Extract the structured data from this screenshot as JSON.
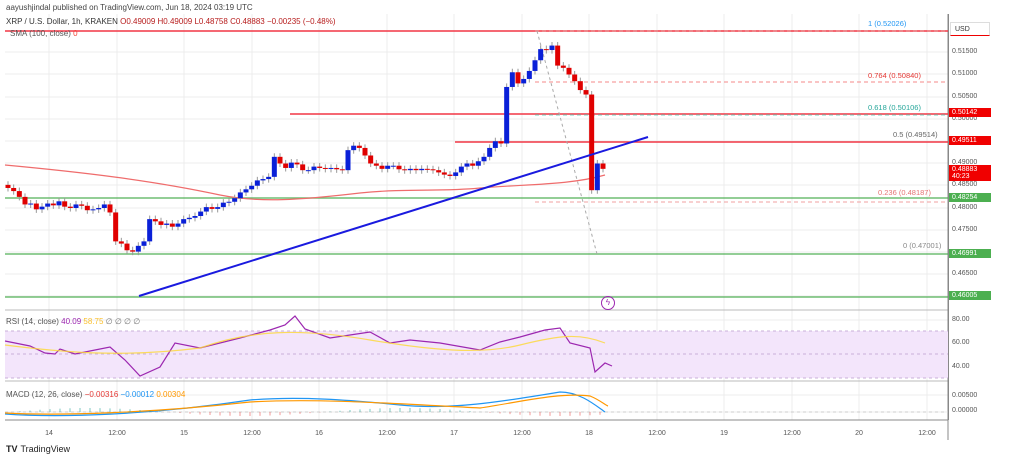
{
  "header": {
    "published": "aayushjindal published on TradingView.com, Jun 18, 2024 03:19 UTC",
    "symbol": "XRP / U.S. Dollar, 1h, KRAKEN",
    "ohlc": {
      "open": "O0.49009",
      "high": "H0.49009",
      "low": "L0.48758",
      "close": "C0.48883",
      "change": "−0.00235 (−0.48%)"
    },
    "sma": {
      "label": "SMA (100, close)",
      "value": "0"
    }
  },
  "currency": "USD",
  "price_axis": {
    "labels": [
      "0.51500",
      "0.51000",
      "0.50500",
      "0.50000",
      "0.49000",
      "0.48500",
      "0.48000",
      "0.47500",
      "0.46500"
    ],
    "tags": [
      {
        "value": "0.50142",
        "color": "#f00000"
      },
      {
        "value": "0.49511",
        "color": "#f00000"
      },
      {
        "value": "0.48883",
        "sub": "40:23",
        "color": "#f00000"
      },
      {
        "value": "0.48254",
        "color": "#4caf50"
      },
      {
        "value": "0.46991",
        "color": "#4caf50"
      },
      {
        "value": "0.46005",
        "color": "#4caf50"
      }
    ]
  },
  "fib_levels": [
    {
      "label": "1 (0.52026)",
      "color": "#2196f3"
    },
    {
      "label": "0.764 (0.50840)",
      "color": "#e53935"
    },
    {
      "label": "0.618 (0.50106)",
      "color": "#26a69a"
    },
    {
      "label": "0.5 (0.49514)",
      "color": "#666666"
    },
    {
      "label": "0.236 (0.48187)",
      "color": "#e57373"
    },
    {
      "label": "0 (0.47001)",
      "color": "#888888"
    }
  ],
  "rsi": {
    "label": "RSI (14, close)",
    "value": "40.09",
    "ma": "58.75",
    "extras": "∅ ∅ ∅ ∅",
    "axis": [
      "80.00",
      "60.00",
      "40.00"
    ]
  },
  "macd": {
    "label": "MACD (12, 26, close)",
    "hist": "−0.00316",
    "macd": "−0.00012",
    "signal": "0.00304",
    "axis": [
      "0.00500",
      "0.00000"
    ]
  },
  "time_axis": [
    "14",
    "12:00",
    "15",
    "12:00",
    "16",
    "12:00",
    "17",
    "12:00",
    "18",
    "12:00",
    "19",
    "12:00",
    "20",
    "12:00"
  ],
  "footer": {
    "brand": "TradingView"
  },
  "colors": {
    "up": "#0a20d8",
    "down": "#e00000",
    "support": "#4caf50",
    "resistance": "#f23645",
    "trendline": "#1a1adf",
    "sma": "#ef6c6c",
    "rsi": "#9c27b0",
    "rsi_ma": "#fdd835",
    "macd": "#2196f3",
    "signal": "#ff9800"
  },
  "chart_data": {
    "type": "candlestick",
    "title": "XRP / U.S. Dollar, 1h, KRAKEN",
    "ylim": [
      0.458,
      0.523
    ],
    "horizontal_lines": {
      "resistance": [
        0.52026,
        0.50142,
        0.49511
      ],
      "support": [
        0.48254,
        0.46991,
        0.46005
      ]
    },
    "candles_close_approx": [
      0.4845,
      0.4838,
      0.4825,
      0.4808,
      0.481,
      0.4797,
      0.4803,
      0.481,
      0.4806,
      0.4815,
      0.4803,
      0.48,
      0.4808,
      0.4805,
      0.4795,
      0.4797,
      0.48,
      0.4808,
      0.479,
      0.4725,
      0.472,
      0.4705,
      0.4702,
      0.4715,
      0.4725,
      0.4775,
      0.477,
      0.4762,
      0.4765,
      0.4758,
      0.4765,
      0.4775,
      0.4778,
      0.4782,
      0.4792,
      0.4802,
      0.4798,
      0.4802,
      0.4812,
      0.4814,
      0.4822,
      0.4835,
      0.4842,
      0.485,
      0.4862,
      0.4865,
      0.487,
      0.4915,
      0.49,
      0.489,
      0.4902,
      0.4898,
      0.4885,
      0.4885,
      0.4893,
      0.489,
      0.4888,
      0.489,
      0.4887,
      0.4885,
      0.493,
      0.494,
      0.4935,
      0.4918,
      0.49,
      0.4895,
      0.4888,
      0.4895,
      0.4895,
      0.4887,
      0.4885,
      0.4888,
      0.4885,
      0.4888,
      0.4887,
      0.4885,
      0.488,
      0.4875,
      0.4872,
      0.488,
      0.4893,
      0.49,
      0.4895,
      0.4905,
      0.4915,
      0.4935,
      0.495,
      0.4945,
      0.5072,
      0.5105,
      0.508,
      0.509,
      0.5108,
      0.5132,
      0.5157,
      0.5155,
      0.5165,
      0.512,
      0.5115,
      0.51,
      0.5085,
      0.5065,
      0.5055,
      0.484,
      0.49,
      0.4888
    ],
    "fibonacci": {
      "1": 0.52026,
      "0.764": 0.5084,
      "0.618": 0.50106,
      "0.5": 0.49514,
      "0.236": 0.48187,
      "0": 0.47001
    },
    "x_ticks": [
      "14",
      "12:00",
      "15",
      "12:00",
      "16",
      "12:00",
      "17",
      "12:00",
      "18",
      "12:00",
      "19",
      "12:00",
      "20",
      "12:00"
    ],
    "indicators": {
      "rsi_last": 40.09,
      "rsi_ma_last": 58.75,
      "macd_hist": -0.00316,
      "macd": -0.00012,
      "signal": 0.00304
    }
  }
}
